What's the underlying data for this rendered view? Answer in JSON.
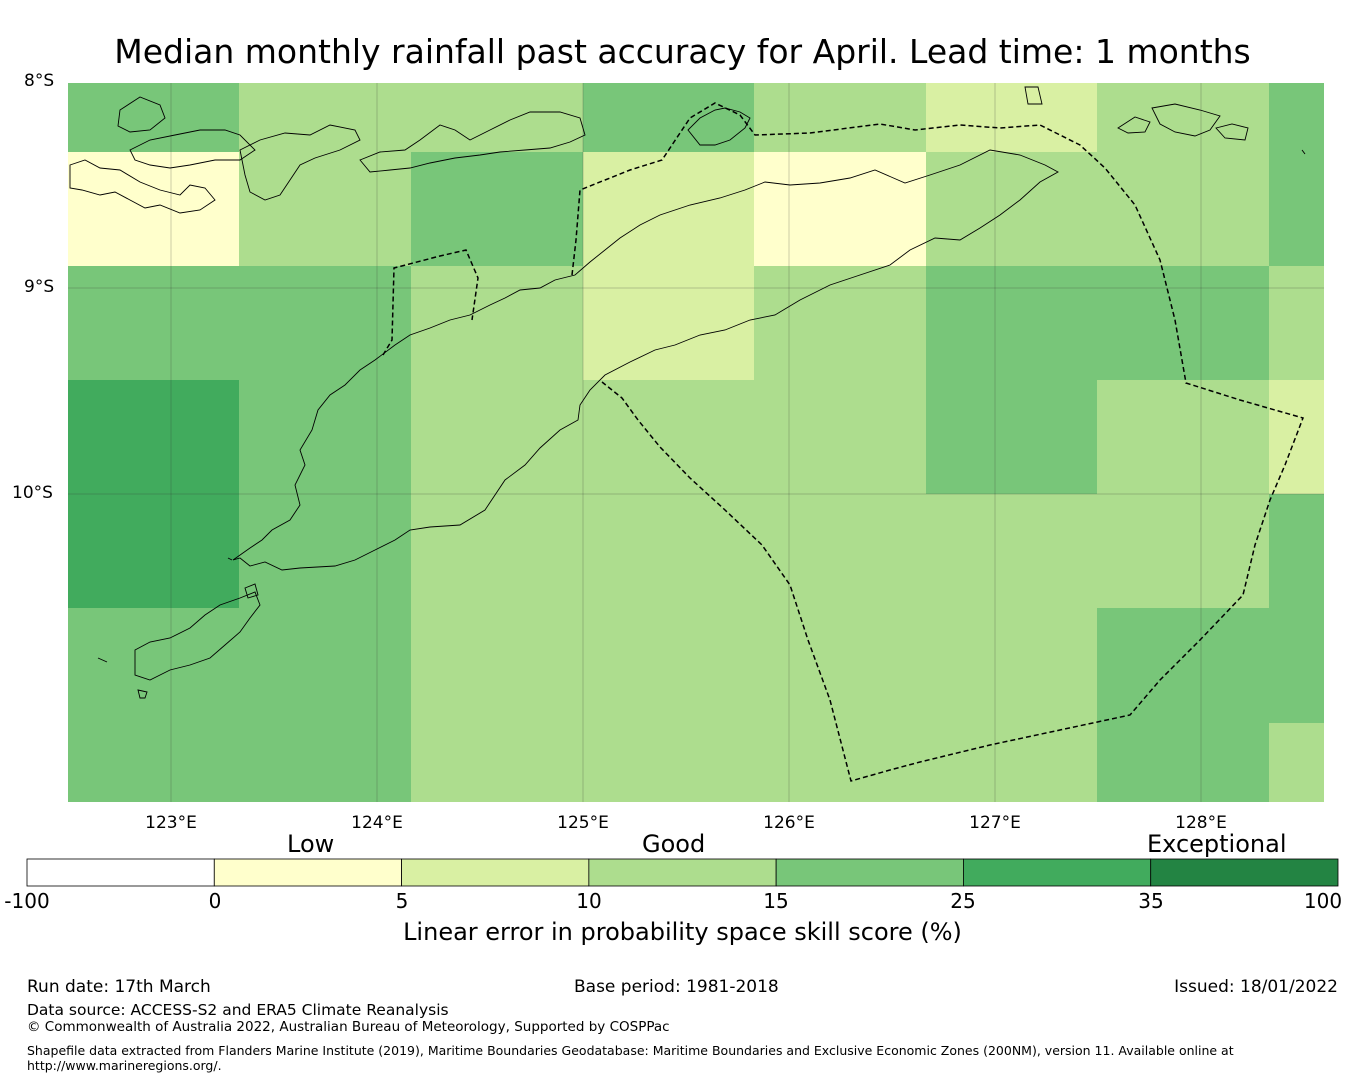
{
  "title": "Median monthly rainfall past accuracy for April. Lead time: 1 months",
  "map": {
    "lat_labels": [
      "8°S",
      "9°S",
      "10°S"
    ],
    "lon_labels": [
      "123°E",
      "124°E",
      "125°E",
      "126°E",
      "127°E",
      "128°E"
    ],
    "skill_grid": [
      [
        20,
        12,
        12,
        20,
        12,
        8,
        12,
        20
      ],
      [
        2,
        12,
        20,
        8,
        2,
        12,
        12,
        20
      ],
      [
        20,
        20,
        12,
        8,
        12,
        20,
        20,
        12
      ],
      [
        30,
        20,
        12,
        12,
        12,
        20,
        12,
        8
      ],
      [
        30,
        20,
        12,
        12,
        12,
        12,
        12,
        20
      ],
      [
        20,
        20,
        12,
        12,
        12,
        12,
        20,
        20
      ],
      [
        20,
        20,
        12,
        12,
        12,
        12,
        20,
        12
      ]
    ]
  },
  "colorbar": {
    "categories": [
      "Low",
      "Good",
      "Exceptional"
    ],
    "ticks": [
      "-100",
      "0",
      "5",
      "10",
      "15",
      "25",
      "35",
      "100"
    ],
    "colors": [
      "#ffffff",
      "#ffffcc",
      "#d9f0a3",
      "#addd8e",
      "#78c679",
      "#41ab5d",
      "#238443"
    ],
    "label": "Linear error in probability space skill score (%)"
  },
  "footer": {
    "run_date": "Run date: 17th March",
    "base_period": "Base period: 1981-2018",
    "issued": "Issued: 18/01/2022",
    "data_source": "Data source: ACCESS-S2 and ERA5 Climate Reanalysis",
    "copyright": "© Commonwealth of Australia 2022, Australian Bureau of Meteorology, Supported by COSPPac",
    "shapefile_line1": "Shapefile data extracted from Flanders Marine Institute (2019), Maritime Boundaries Geodatabase: Maritime Boundaries and Exclusive Economic Zones (200NM), version 11. Available online at",
    "shapefile_line2": "http://www.marineregions.org/."
  }
}
